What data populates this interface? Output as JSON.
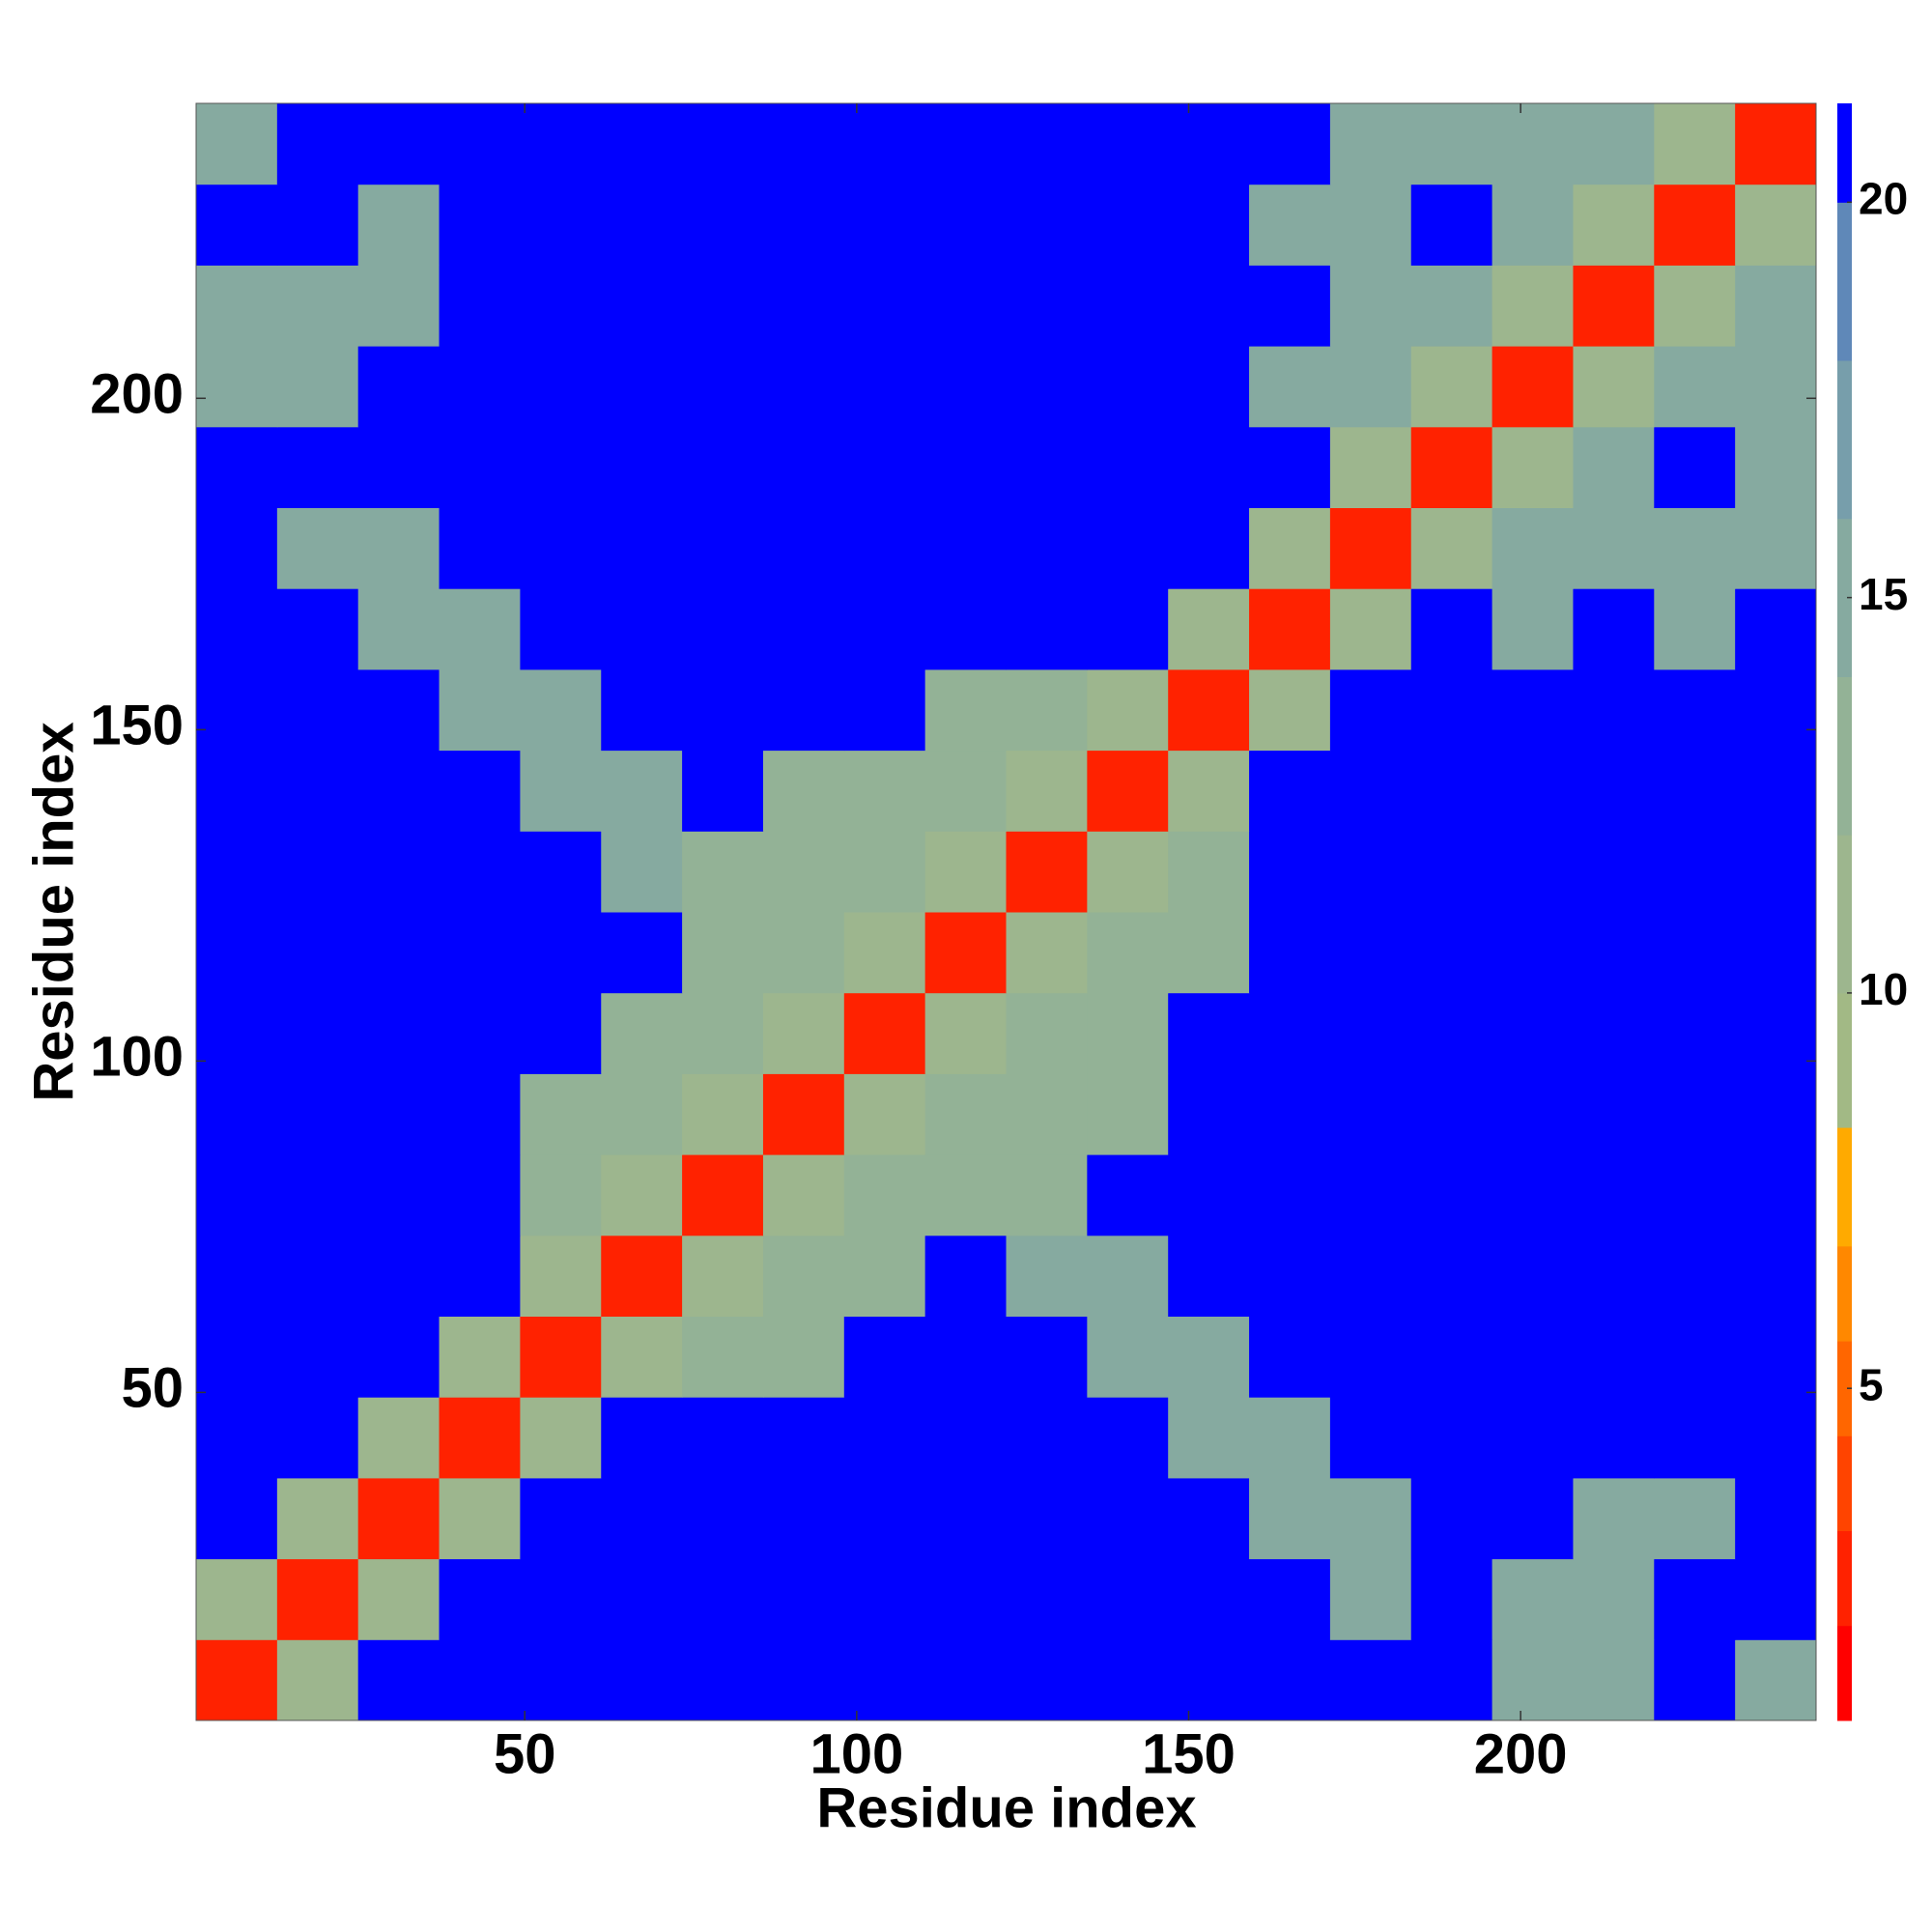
{
  "chart_data": {
    "type": "heatmap",
    "xlabel": "Residue index",
    "ylabel": "Residue index",
    "xlim": [
      0.5,
      244.5
    ],
    "ylim": [
      0.5,
      244.5
    ],
    "xticks": [
      50,
      100,
      150,
      200
    ],
    "yticks": [
      50,
      100,
      150,
      200
    ],
    "xbins": [
      0.5,
      12.7,
      24.9,
      37.1,
      49.3,
      61.5,
      73.7,
      85.9,
      98.1,
      110.3,
      122.5,
      134.7,
      146.9,
      159.1,
      171.3,
      183.5,
      195.7,
      207.9,
      220.1,
      232.3,
      244.5
    ],
    "ybins": [
      0.5,
      12.7,
      24.9,
      37.1,
      49.3,
      61.5,
      73.7,
      85.9,
      98.1,
      110.3,
      122.5,
      134.7,
      146.9,
      159.1,
      171.3,
      183.5,
      195.7,
      207.9,
      220.1,
      232.3,
      244.5
    ],
    "z": [
      [
        3,
        12,
        21,
        21,
        21,
        21,
        21,
        21,
        21,
        21,
        21,
        21,
        21,
        21,
        21,
        21,
        15,
        15,
        21,
        15
      ],
      [
        12,
        3,
        12,
        21,
        21,
        21,
        21,
        21,
        21,
        21,
        21,
        21,
        21,
        21,
        15,
        21,
        15,
        15,
        21,
        21
      ],
      [
        21,
        12,
        3,
        12,
        21,
        21,
        21,
        21,
        21,
        21,
        21,
        21,
        21,
        15,
        15,
        21,
        21,
        15,
        15,
        21
      ],
      [
        21,
        21,
        12,
        3,
        12,
        21,
        21,
        21,
        21,
        21,
        21,
        21,
        15,
        15,
        21,
        21,
        21,
        21,
        21,
        21
      ],
      [
        21,
        21,
        21,
        12,
        3,
        12,
        14,
        14,
        21,
        21,
        21,
        15,
        15,
        21,
        21,
        21,
        21,
        21,
        21,
        21
      ],
      [
        21,
        21,
        21,
        21,
        12,
        3,
        12,
        14,
        14,
        21,
        15,
        15,
        21,
        21,
        21,
        21,
        21,
        21,
        21,
        21
      ],
      [
        21,
        21,
        21,
        21,
        14,
        12,
        3,
        12,
        14,
        14,
        14,
        21,
        21,
        21,
        21,
        21,
        21,
        21,
        21,
        21
      ],
      [
        21,
        21,
        21,
        21,
        14,
        14,
        12,
        3,
        12,
        14,
        14,
        14,
        21,
        21,
        21,
        21,
        21,
        21,
        21,
        21
      ],
      [
        21,
        21,
        21,
        21,
        21,
        14,
        14,
        12,
        3,
        12,
        14,
        14,
        21,
        21,
        21,
        21,
        21,
        21,
        21,
        21
      ],
      [
        21,
        21,
        21,
        21,
        21,
        21,
        14,
        14,
        12,
        3,
        12,
        14,
        14,
        21,
        21,
        21,
        21,
        21,
        21,
        21
      ],
      [
        21,
        21,
        21,
        21,
        21,
        15,
        14,
        14,
        14,
        12,
        3,
        12,
        14,
        21,
        21,
        21,
        21,
        21,
        21,
        21
      ],
      [
        21,
        21,
        21,
        21,
        15,
        15,
        21,
        14,
        14,
        14,
        12,
        3,
        12,
        21,
        21,
        21,
        21,
        21,
        21,
        21
      ],
      [
        21,
        21,
        21,
        15,
        15,
        21,
        21,
        21,
        21,
        14,
        14,
        12,
        3,
        12,
        21,
        21,
        21,
        21,
        21,
        21
      ],
      [
        21,
        21,
        15,
        15,
        21,
        21,
        21,
        21,
        21,
        21,
        21,
        21,
        12,
        3,
        12,
        21,
        15,
        21,
        15,
        21
      ],
      [
        21,
        15,
        15,
        21,
        21,
        21,
        21,
        21,
        21,
        21,
        21,
        21,
        21,
        12,
        3,
        12,
        15,
        15,
        15,
        15
      ],
      [
        21,
        21,
        21,
        21,
        21,
        21,
        21,
        21,
        21,
        21,
        21,
        21,
        21,
        21,
        12,
        3,
        12,
        15,
        21,
        15
      ],
      [
        15,
        15,
        21,
        21,
        21,
        21,
        21,
        21,
        21,
        21,
        21,
        21,
        21,
        15,
        15,
        12,
        3,
        12,
        15,
        15
      ],
      [
        15,
        15,
        15,
        21,
        21,
        21,
        21,
        21,
        21,
        21,
        21,
        21,
        21,
        21,
        15,
        15,
        12,
        3,
        12,
        15
      ],
      [
        21,
        21,
        15,
        21,
        21,
        21,
        21,
        21,
        21,
        21,
        21,
        21,
        21,
        15,
        15,
        21,
        15,
        12,
        3,
        12
      ],
      [
        15,
        21,
        21,
        21,
        21,
        21,
        21,
        21,
        21,
        21,
        21,
        21,
        21,
        21,
        15,
        15,
        15,
        15,
        12,
        3
      ]
    ],
    "clim": [
      0.8,
      21.25
    ],
    "cticks": [
      5,
      10,
      15,
      20
    ],
    "levels": [
      0.8,
      2,
      3.2,
      4.4,
      5.6,
      6.8,
      8.3,
      10,
      12,
      14,
      16,
      18,
      20,
      21.25
    ],
    "colors": [
      "#ff0000",
      "#ff2200",
      "#ff4400",
      "#ff6600",
      "#ff8800",
      "#ffaa00",
      "#a2b985",
      "#9db68e",
      "#93b296",
      "#86aaa0",
      "#779eab",
      "#5f88b8",
      "#0000ff"
    ]
  }
}
